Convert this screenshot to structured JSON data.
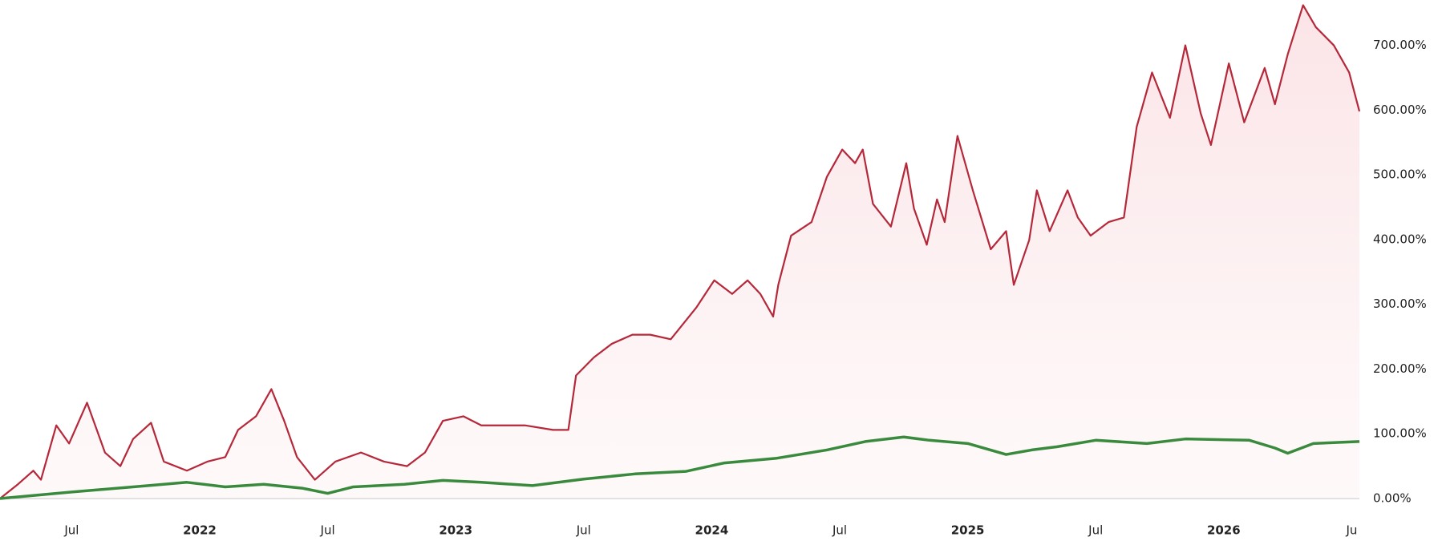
{
  "chart_data": {
    "type": "line",
    "xlim": [
      2021.22,
      2026.53
    ],
    "xticks": [
      {
        "value": 2021.5,
        "label": "Jul"
      },
      2022,
      {
        "value": 2022.5,
        "label": "Jul"
      },
      2023,
      {
        "value": 2023.5,
        "label": "Jul"
      },
      2024,
      {
        "value": 2024.5,
        "label": "Jul"
      },
      2025,
      {
        "value": 2025.5,
        "label": "Jul"
      },
      2026,
      {
        "value": 2026.5,
        "label": "Ju"
      }
    ],
    "ylim": [
      0,
      770
    ],
    "yticks": [
      {
        "value": 0,
        "label": "0.00%"
      },
      {
        "value": 100,
        "label": "100.00%"
      },
      {
        "value": 200,
        "label": "200.00%"
      },
      {
        "value": 300,
        "label": "300.00%"
      },
      {
        "value": 400,
        "label": "400.00%"
      },
      {
        "value": 500,
        "label": "500.00%"
      },
      {
        "value": 600,
        "label": "600.00%"
      },
      {
        "value": 700,
        "label": "700.00%"
      }
    ],
    "series": [
      {
        "color": "#b5283a",
        "area": true,
        "x": [
          2021.22,
          2021.29,
          2021.35,
          2021.38,
          2021.44,
          2021.49,
          2021.56,
          2021.63,
          2021.69,
          2021.74,
          2021.81,
          2021.86,
          2021.95,
          2022.03,
          2022.1,
          2022.15,
          2022.22,
          2022.28,
          2022.33,
          2022.38,
          2022.45,
          2022.53,
          2022.63,
          2022.72,
          2022.81,
          2022.88,
          2022.95,
          2023.03,
          2023.1,
          2023.19,
          2023.27,
          2023.38,
          2023.44,
          2023.47,
          2023.54,
          2023.61,
          2023.69,
          2023.76,
          2023.84,
          2023.94,
          2024.01,
          2024.08,
          2024.14,
          2024.19,
          2024.24,
          2024.26,
          2024.31,
          2024.39,
          2024.45,
          2024.51,
          2024.56,
          2024.59,
          2024.63,
          2024.7,
          2024.76,
          2024.79,
          2024.84,
          2024.88,
          2024.91,
          2024.96,
          2025.02,
          2025.09,
          2025.15,
          2025.18,
          2025.24,
          2025.27,
          2025.32,
          2025.39,
          2025.43,
          2025.48,
          2025.55,
          2025.61,
          2025.66,
          2025.72,
          2025.79,
          2025.85,
          2025.91,
          2025.95,
          2026.02,
          2026.08,
          2026.16,
          2026.2,
          2026.25,
          2026.31,
          2026.36,
          2026.43,
          2026.49,
          2026.53
        ],
        "values": [
          0,
          22,
          43,
          29,
          113,
          85,
          148,
          71,
          50,
          92,
          117,
          57,
          43,
          57,
          64,
          106,
          127,
          169,
          120,
          64,
          29,
          57,
          71,
          57,
          50,
          71,
          120,
          127,
          113,
          113,
          113,
          106,
          106,
          190,
          218,
          239,
          253,
          253,
          246,
          295,
          337,
          316,
          337,
          316,
          281,
          330,
          406,
          427,
          497,
          539,
          518,
          539,
          455,
          420,
          518,
          448,
          392,
          462,
          427,
          560,
          476,
          385,
          413,
          330,
          399,
          476,
          413,
          476,
          434,
          406,
          427,
          434,
          574,
          658,
          588,
          700,
          595,
          546,
          672,
          581,
          665,
          609,
          686,
          762,
          728,
          700,
          658,
          598
        ]
      },
      {
        "color": "#3a8a3e",
        "area": false,
        "x": [
          2021.22,
          2021.5,
          2021.8,
          2021.95,
          2022.1,
          2022.25,
          2022.4,
          2022.5,
          2022.6,
          2022.8,
          2022.95,
          2023.1,
          2023.3,
          2023.5,
          2023.7,
          2023.9,
          2024.05,
          2024.25,
          2024.45,
          2024.6,
          2024.75,
          2024.85,
          2025.0,
          2025.15,
          2025.25,
          2025.35,
          2025.5,
          2025.7,
          2025.85,
          2026.1,
          2026.2,
          2026.25,
          2026.35,
          2026.53
        ],
        "values": [
          0,
          10,
          20,
          25,
          18,
          22,
          16,
          8,
          18,
          22,
          28,
          25,
          20,
          30,
          38,
          42,
          55,
          62,
          75,
          88,
          95,
          90,
          85,
          68,
          75,
          80,
          90,
          85,
          92,
          90,
          78,
          70,
          85,
          88
        ]
      }
    ]
  }
}
